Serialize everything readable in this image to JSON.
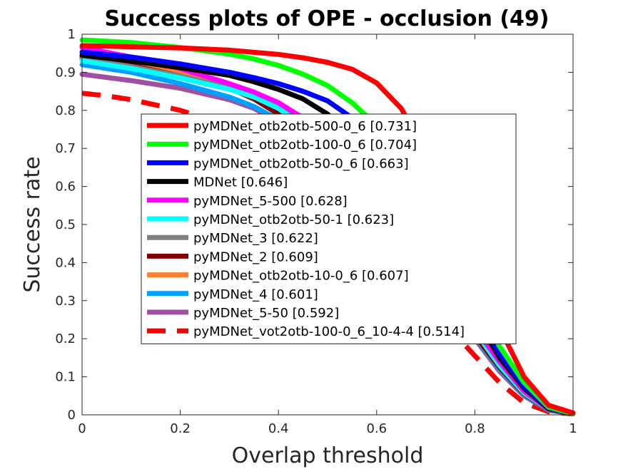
{
  "chart_data": {
    "type": "line",
    "title": "Success plots of OPE - occlusion (49)",
    "xlabel": "Overlap threshold",
    "ylabel": "Success rate",
    "xlim": [
      0,
      1
    ],
    "ylim": [
      0,
      1
    ],
    "xticks": [
      "0",
      "0.2",
      "0.4",
      "0.6",
      "0.8",
      "1"
    ],
    "yticks": [
      "0",
      "0.1",
      "0.2",
      "0.3",
      "0.4",
      "0.5",
      "0.6",
      "0.7",
      "0.8",
      "0.9",
      "1"
    ],
    "grid": false,
    "legend_position": "center",
    "series": [
      {
        "name": "pyMDNet_otb2otb-500-0_6 [0.731]",
        "color": "#ff0000",
        "dash": false,
        "x": [
          0,
          0.1,
          0.2,
          0.3,
          0.4,
          0.45,
          0.5,
          0.55,
          0.6,
          0.65,
          0.7,
          0.75,
          0.8,
          0.85,
          0.9,
          0.95,
          1
        ],
        "y": [
          0.97,
          0.967,
          0.964,
          0.958,
          0.947,
          0.938,
          0.926,
          0.908,
          0.872,
          0.805,
          0.69,
          0.55,
          0.4,
          0.23,
          0.1,
          0.025,
          0.005
        ]
      },
      {
        "name": "pyMDNet_otb2otb-100-0_6 [0.704]",
        "color": "#00ff00",
        "dash": false,
        "x": [
          0,
          0.1,
          0.2,
          0.3,
          0.35,
          0.4,
          0.45,
          0.5,
          0.55,
          0.6,
          0.65,
          0.7,
          0.75,
          0.8,
          0.85,
          0.9,
          0.95,
          1
        ],
        "y": [
          0.985,
          0.978,
          0.965,
          0.948,
          0.935,
          0.918,
          0.895,
          0.865,
          0.82,
          0.76,
          0.68,
          0.56,
          0.44,
          0.31,
          0.18,
          0.085,
          0.02,
          0.003
        ]
      },
      {
        "name": "pyMDNet_otb2otb-50-0_6 [0.663]",
        "color": "#0000ff",
        "dash": false,
        "x": [
          0,
          0.1,
          0.2,
          0.3,
          0.35,
          0.4,
          0.45,
          0.5,
          0.55,
          0.6,
          0.65,
          0.7,
          0.75,
          0.8,
          0.85,
          0.9,
          0.95,
          1
        ],
        "y": [
          0.953,
          0.94,
          0.922,
          0.9,
          0.886,
          0.87,
          0.85,
          0.825,
          0.78,
          0.7,
          0.6,
          0.49,
          0.38,
          0.27,
          0.16,
          0.075,
          0.018,
          0.003
        ]
      },
      {
        "name": "MDNet [0.646]",
        "color": "#000000",
        "dash": false,
        "x": [
          0,
          0.1,
          0.2,
          0.3,
          0.35,
          0.4,
          0.45,
          0.5,
          0.55,
          0.6,
          0.65,
          0.7,
          0.75,
          0.8,
          0.85,
          0.9,
          0.95,
          1
        ],
        "y": [
          0.945,
          0.93,
          0.912,
          0.892,
          0.875,
          0.855,
          0.83,
          0.79,
          0.73,
          0.65,
          0.56,
          0.46,
          0.36,
          0.26,
          0.15,
          0.07,
          0.016,
          0.003
        ]
      },
      {
        "name": "pyMDNet_5-500 [0.628]",
        "color": "#ff00ff",
        "dash": false,
        "x": [
          0,
          0.1,
          0.2,
          0.3,
          0.35,
          0.4,
          0.45,
          0.5,
          0.55,
          0.6,
          0.65,
          0.7,
          0.75,
          0.8,
          0.85,
          0.9,
          0.95,
          1
        ],
        "y": [
          0.965,
          0.94,
          0.91,
          0.87,
          0.848,
          0.82,
          0.78,
          0.72,
          0.65,
          0.57,
          0.49,
          0.4,
          0.32,
          0.23,
          0.14,
          0.062,
          0.015,
          0.003
        ]
      },
      {
        "name": "pyMDNet_otb2otb-50-1 [0.623]",
        "color": "#00ffff",
        "dash": false,
        "x": [
          0,
          0.1,
          0.2,
          0.3,
          0.35,
          0.4,
          0.45,
          0.5,
          0.55,
          0.6,
          0.65,
          0.7,
          0.75,
          0.8,
          0.85,
          0.9,
          0.95,
          1
        ],
        "y": [
          0.93,
          0.91,
          0.885,
          0.855,
          0.835,
          0.805,
          0.76,
          0.71,
          0.64,
          0.56,
          0.48,
          0.39,
          0.31,
          0.22,
          0.13,
          0.058,
          0.014,
          0.003
        ]
      },
      {
        "name": "pyMDNet_3 [0.622]",
        "color": "#808080",
        "dash": false,
        "x": [
          0,
          0.1,
          0.2,
          0.3,
          0.35,
          0.4,
          0.45,
          0.5,
          0.55,
          0.6,
          0.65,
          0.7,
          0.75,
          0.8,
          0.85,
          0.9,
          0.95,
          1
        ],
        "y": [
          0.935,
          0.915,
          0.89,
          0.86,
          0.838,
          0.808,
          0.765,
          0.712,
          0.64,
          0.56,
          0.48,
          0.39,
          0.31,
          0.22,
          0.13,
          0.057,
          0.014,
          0.003
        ]
      },
      {
        "name": "pyMDNet_2 [0.609]",
        "color": "#800000",
        "dash": false,
        "x": [
          0,
          0.1,
          0.2,
          0.3,
          0.35,
          0.4,
          0.45,
          0.5,
          0.55,
          0.6,
          0.65,
          0.7,
          0.75,
          0.8,
          0.85,
          0.9,
          0.95,
          1
        ],
        "y": [
          0.94,
          0.918,
          0.89,
          0.858,
          0.83,
          0.79,
          0.745,
          0.69,
          0.62,
          0.54,
          0.46,
          0.38,
          0.3,
          0.21,
          0.125,
          0.055,
          0.013,
          0.003
        ]
      },
      {
        "name": "pyMDNet_otb2otb-10-0_6 [0.607]",
        "color": "#ff8030",
        "dash": false,
        "x": [
          0,
          0.1,
          0.2,
          0.3,
          0.35,
          0.4,
          0.45,
          0.5,
          0.55,
          0.6,
          0.65,
          0.7,
          0.75,
          0.8,
          0.85,
          0.9,
          0.95,
          1
        ],
        "y": [
          0.94,
          0.922,
          0.9,
          0.865,
          0.84,
          0.8,
          0.745,
          0.68,
          0.61,
          0.53,
          0.455,
          0.375,
          0.295,
          0.21,
          0.125,
          0.055,
          0.013,
          0.003
        ]
      },
      {
        "name": "pyMDNet_4 [0.601]",
        "color": "#00a0ff",
        "dash": false,
        "x": [
          0,
          0.1,
          0.2,
          0.3,
          0.35,
          0.4,
          0.45,
          0.5,
          0.55,
          0.6,
          0.65,
          0.7,
          0.75,
          0.8,
          0.85,
          0.9,
          0.95,
          1
        ],
        "y": [
          0.92,
          0.9,
          0.87,
          0.835,
          0.81,
          0.775,
          0.73,
          0.67,
          0.6,
          0.525,
          0.45,
          0.37,
          0.29,
          0.205,
          0.12,
          0.052,
          0.012,
          0.003
        ]
      },
      {
        "name": "pyMDNet_5-50 [0.592]",
        "color": "#a050a0",
        "dash": false,
        "x": [
          0,
          0.1,
          0.2,
          0.3,
          0.35,
          0.4,
          0.45,
          0.5,
          0.55,
          0.6,
          0.65,
          0.7,
          0.75,
          0.8,
          0.85,
          0.9,
          0.95,
          1
        ],
        "y": [
          0.895,
          0.878,
          0.858,
          0.828,
          0.805,
          0.77,
          0.725,
          0.665,
          0.595,
          0.52,
          0.44,
          0.36,
          0.28,
          0.2,
          0.115,
          0.05,
          0.012,
          0.003
        ]
      },
      {
        "name": "pyMDNet_vot2otb-100-0_6_10-4-4 [0.514]",
        "color": "#ff0000",
        "dash": true,
        "x": [
          0,
          0.05,
          0.1,
          0.2,
          0.3,
          0.35,
          0.4,
          0.45,
          0.5,
          0.55,
          0.6,
          0.65,
          0.7,
          0.75,
          0.8,
          0.85,
          0.9,
          0.95,
          1
        ],
        "y": [
          0.845,
          0.838,
          0.828,
          0.8,
          0.76,
          0.735,
          0.7,
          0.66,
          0.6,
          0.53,
          0.45,
          0.375,
          0.3,
          0.225,
          0.155,
          0.085,
          0.032,
          0.008,
          0.002
        ]
      }
    ]
  }
}
